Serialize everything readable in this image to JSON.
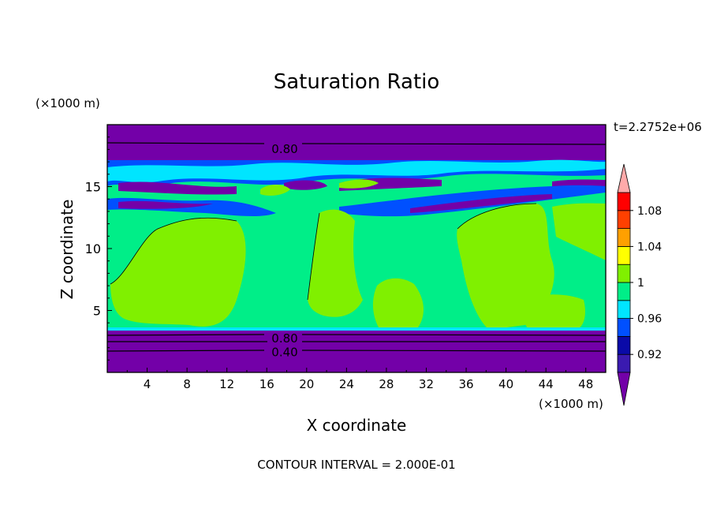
{
  "chart_data": {
    "type": "heatmap",
    "title": "Saturation Ratio",
    "xlabel": "X coordinate",
    "ylabel": "Z coordinate",
    "x_unit": "(×1000 m)",
    "z_unit": "(×1000 m)",
    "time_label": "t=2.2752e+06",
    "footer": "CONTOUR INTERVAL = 2.000E-01",
    "xlim": [
      0,
      50
    ],
    "ylim": [
      0,
      20
    ],
    "x_ticks": [
      "4",
      "8",
      "12",
      "16",
      "20",
      "24",
      "28",
      "32",
      "36",
      "40",
      "44",
      "48"
    ],
    "y_ticks": [
      "5",
      "10",
      "15"
    ],
    "contour_labels": [
      {
        "text": "0.80",
        "x": 17.8,
        "z": 18.1
      },
      {
        "text": "0.80",
        "x": 17.8,
        "z": 2.8
      },
      {
        "text": "0.40",
        "x": 17.8,
        "z": 1.7
      }
    ],
    "colorbar": {
      "labels": [
        "1.08",
        "1.04",
        "1",
        "0.96",
        "0.92"
      ],
      "levels": [
        "<0.90",
        "0.90-0.92",
        "0.92-0.94",
        "0.94-0.96",
        "0.96-0.98",
        "0.98-1.00",
        "1.00-1.02",
        "1.02-1.04",
        "1.04-1.06",
        "1.06-1.08",
        "1.08-1.10",
        ">1.10"
      ],
      "colors": [
        "#7300a8",
        "#3a1ab0",
        "#0a0aa8",
        "#0050ff",
        "#00e5ff",
        "#00ee88",
        "#80f000",
        "#ffff00",
        "#ffa000",
        "#ff4000",
        "#ff0000",
        "#ffaaaa"
      ]
    },
    "regions_note": "",
    "band_values": {
      "top_layer_color": "#7300a8",
      "mid_layer_color": "#00ee88",
      "plume_color": "#80f000",
      "bottom_layer_color": "#7300a8"
    }
  }
}
